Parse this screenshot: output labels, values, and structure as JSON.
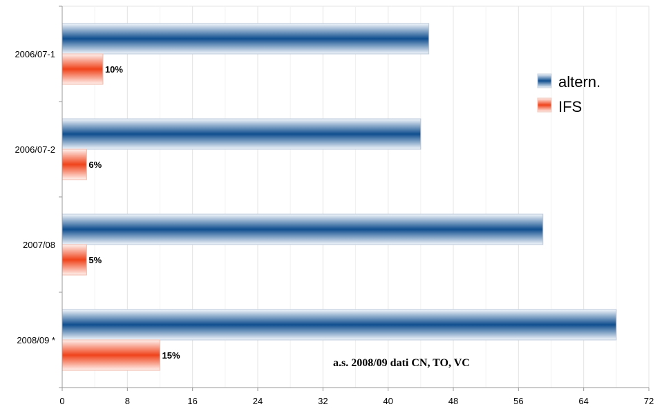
{
  "chart_data": {
    "type": "bar",
    "orientation": "horizontal",
    "categories": [
      "2006/07-1",
      "2006/07-2",
      "2007/08",
      "2008/09 *"
    ],
    "series": [
      {
        "name": "altern.",
        "values": [
          45,
          44,
          59,
          68
        ],
        "color": "#1a5a9a"
      },
      {
        "name": "IFS",
        "values": [
          5,
          3,
          3,
          12
        ],
        "labels": [
          "10%",
          "6%",
          "5%",
          "15%"
        ],
        "color": "#f0532b"
      }
    ],
    "xlim": [
      0,
      72
    ],
    "xticks": [
      0,
      8,
      16,
      24,
      32,
      40,
      48,
      56,
      64,
      72
    ],
    "grid": true,
    "legend": "right",
    "annotation": "a.s. 2008/09 dati CN, TO, VC",
    "title": "",
    "xlabel": "",
    "ylabel": ""
  }
}
